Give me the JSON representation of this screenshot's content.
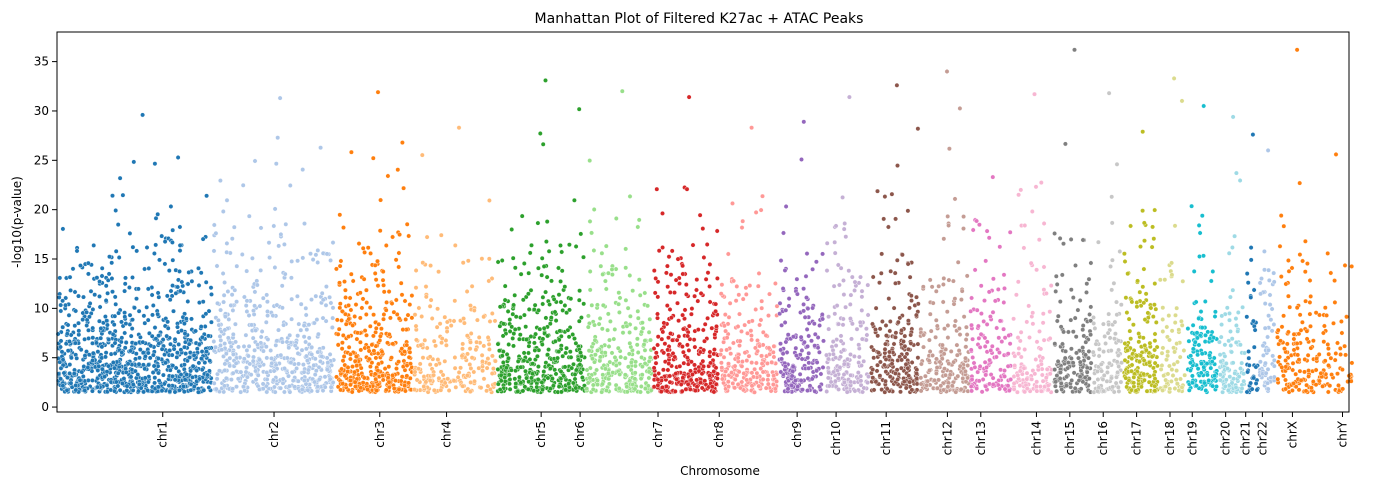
{
  "chart_data": {
    "type": "scatter",
    "title": "Manhattan Plot of Filtered K27ac + ATAC Peaks",
    "xlabel": "Chromosome",
    "ylabel": "-log10(p-value)",
    "ylim": [
      -0.5,
      38
    ],
    "y_ticks": [
      "0",
      "5",
      "10",
      "15",
      "20",
      "25",
      "30",
      "35"
    ],
    "grid": false,
    "legend": "none",
    "point_color_scheme": "tab20 by chromosome",
    "chromosomes": [
      {
        "name": "chr1",
        "x_range": [
          0.0,
          0.14
        ],
        "max_y": 29.6,
        "density": 1.0,
        "color": "#1f77b4",
        "label_pos": 0.095
      },
      {
        "name": "chr2",
        "x_range": [
          0.14,
          0.25
        ],
        "max_y": 31.3,
        "density": 0.75,
        "color": "#aec7e8",
        "label_pos": 0.195
      },
      {
        "name": "chr3",
        "x_range": [
          0.25,
          0.32
        ],
        "max_y": 31.9,
        "density": 0.85,
        "color": "#ff7f0e",
        "label_pos": 0.29
      },
      {
        "name": "chr4",
        "x_range": [
          0.32,
          0.395
        ],
        "max_y": 28.3,
        "density": 0.45,
        "color": "#ffbb78",
        "label_pos": 0.35
      },
      {
        "name": "chr5",
        "x_range": [
          0.395,
          0.475
        ],
        "max_y": 33.1,
        "density": 0.8,
        "color": "#2ca02c",
        "label_pos": 0.435
      },
      {
        "name": "chr6",
        "x_range": [
          0.475,
          0.535
        ],
        "max_y": 32.0,
        "density": 0.7,
        "color": "#98df8a",
        "label_pos": 0.47
      },
      {
        "name": "chr7",
        "x_range": [
          0.535,
          0.595
        ],
        "max_y": 31.4,
        "density": 0.8,
        "color": "#d62728",
        "label_pos": 0.54
      },
      {
        "name": "chr8",
        "x_range": [
          0.595,
          0.648
        ],
        "max_y": 28.3,
        "density": 0.65,
        "color": "#ff9896",
        "label_pos": 0.595
      },
      {
        "name": "chr9",
        "x_range": [
          0.648,
          0.69
        ],
        "max_y": 28.9,
        "density": 0.7,
        "color": "#9467bd",
        "label_pos": 0.665
      },
      {
        "name": "chr10",
        "x_range": [
          0.69,
          0.73
        ],
        "max_y": 31.4,
        "density": 0.65,
        "color": "#c5b0d5",
        "label_pos": 0.7
      },
      {
        "name": "chr11",
        "x_range": [
          0.73,
          0.775
        ],
        "max_y": 32.6,
        "density": 0.75,
        "color": "#8c564b",
        "label_pos": 0.745
      },
      {
        "name": "chr12",
        "x_range": [
          0.775,
          0.82
        ],
        "max_y": 34.0,
        "density": 0.65,
        "color": "#c49c94",
        "label_pos": 0.8
      },
      {
        "name": "chr13",
        "x_range": [
          0.82,
          0.858
        ],
        "max_y": 23.3,
        "density": 0.55,
        "color": "#e377c2",
        "label_pos": 0.83
      },
      {
        "name": "chr14",
        "x_range": [
          0.858,
          0.895
        ],
        "max_y": 31.7,
        "density": 0.55,
        "color": "#f7b6d2",
        "label_pos": 0.88
      },
      {
        "name": "chr15",
        "x_range": [
          0.895,
          0.93
        ],
        "max_y": 36.2,
        "density": 0.7,
        "color": "#7f7f7f",
        "label_pos": 0.91
      },
      {
        "name": "chr16",
        "x_range": [
          0.93,
          0.958
        ],
        "max_y": 31.8,
        "density": 0.6,
        "color": "#c7c7c7",
        "label_pos": 0.94
      },
      {
        "name": "chr17",
        "x_range": [
          0.958,
          0.99
        ],
        "max_y": 27.9,
        "density": 0.9,
        "color": "#bcbd22",
        "label_pos": 0.97
      },
      {
        "name": "chr18",
        "x_range": [
          0.99,
          1.015
        ],
        "max_y": 33.3,
        "density": 0.5,
        "color": "#dbdb8d",
        "label_pos": 1.0
      },
      {
        "name": "chr19",
        "x_range": [
          1.015,
          1.043
        ],
        "max_y": 30.5,
        "density": 0.75,
        "color": "#17becf",
        "label_pos": 1.02
      },
      {
        "name": "chr20",
        "x_range": [
          1.043,
          1.068
        ],
        "max_y": 29.4,
        "density": 0.65,
        "color": "#9edae5",
        "label_pos": 1.05
      },
      {
        "name": "chr21",
        "x_range": [
          1.068,
          1.08
        ],
        "max_y": 27.6,
        "density": 0.55,
        "color": "#1f77b4",
        "label_pos": 1.068
      },
      {
        "name": "chr22",
        "x_range": [
          1.08,
          1.095
        ],
        "max_y": 26.0,
        "density": 0.7,
        "color": "#aec7e8",
        "label_pos": 1.083
      },
      {
        "name": "chrX",
        "x_range": [
          1.095,
          1.13
        ],
        "max_y": 36.2,
        "density": 0.6,
        "color": "#ff7f0e",
        "label_pos": 1.11
      },
      {
        "name": "chrY",
        "x_range": [
          1.13,
          1.165
        ],
        "max_y": 25.6,
        "density": 0.35,
        "color": "#ff7f0e",
        "label_pos": 1.155
      }
    ]
  }
}
